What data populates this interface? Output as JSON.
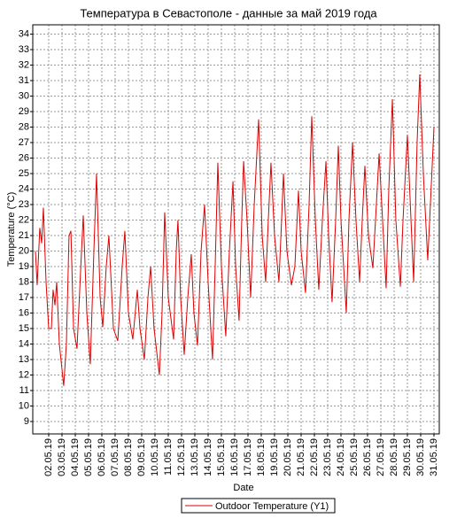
{
  "chart_data": {
    "type": "line",
    "title": "Температура в Севастополе - данные за май 2019 года",
    "x_label": "Date",
    "y_label": "Temperature (°C)",
    "x": [
      1.0,
      1.13,
      1.33,
      1.47,
      1.6,
      1.8,
      2,
      2.2,
      2.33,
      2.47,
      2.6,
      2.8,
      3.13,
      3.33,
      3.53,
      3.67,
      3.87,
      4.13,
      4.47,
      4.6,
      4.87,
      5.13,
      5.4,
      5.6,
      5.87,
      6.07,
      6.33,
      6.53,
      6.87,
      7.2,
      7.53,
      7.73,
      8,
      8.33,
      8.67,
      8.87,
      9.2,
      9.47,
      9.67,
      9.93,
      10.33,
      10.53,
      10.73,
      11,
      11.4,
      11.6,
      11.73,
      11.93,
      12.2,
      12.47,
      12.73,
      12.93,
      13.2,
      13.47,
      13.73,
      14,
      14.33,
      14.53,
      14.73,
      15,
      15.33,
      15.6,
      15.87,
      16.07,
      16.33,
      16.53,
      16.67,
      16.93,
      17.2,
      17.47,
      17.8,
      18.07,
      18.33,
      18.53,
      18.73,
      19,
      19.33,
      19.53,
      19.67,
      19.93,
      20.27,
      20.53,
      20.8,
      21,
      21.33,
      21.6,
      21.8,
      22.07,
      22.33,
      22.6,
      22.87,
      23.07,
      23.33,
      23.6,
      23.8,
      24,
      24.4,
      24.6,
      24.87,
      25.13,
      25.4,
      25.6,
      25.8,
      26.07,
      26.4,
      26.6,
      26.87,
      27.13,
      27.4,
      27.6,
      27.87,
      28.13,
      28.47,
      28.67,
      29,
      29.27,
      29.47,
      29.73,
      29.93,
      30.2,
      30.53,
      30.73,
      31
    ],
    "series": [
      {
        "name": "Outdoor Temperature (Y1)",
        "color": "#dd0000",
        "values": [
          20,
          17.8,
          21.5,
          20.5,
          22.8,
          18,
          15,
          15,
          17.5,
          16.5,
          18,
          14,
          11.3,
          14,
          21,
          21.3,
          15,
          13.7,
          20,
          22.3,
          16,
          12.7,
          20,
          25,
          17,
          15.1,
          19,
          21,
          15,
          14.2,
          19,
          21.3,
          16,
          14.3,
          17.5,
          15,
          13,
          17,
          19,
          15,
          12,
          16,
          22.5,
          17,
          14.3,
          20,
          22,
          17,
          13.3,
          17,
          19.8,
          16,
          13.9,
          20,
          23,
          18,
          13,
          19,
          25.7,
          19,
          14.5,
          20,
          24.5,
          19,
          15.5,
          22,
          25.8,
          22,
          17,
          23,
          28.5,
          21,
          18,
          22,
          25.7,
          21,
          18,
          22,
          25,
          20,
          17.8,
          19,
          23.9,
          20,
          17.3,
          23,
          28.7,
          22,
          17.5,
          22,
          25.8,
          21,
          16.7,
          22,
          26.8,
          22,
          16,
          22,
          27,
          22,
          18,
          22,
          25.5,
          21,
          18.9,
          22,
          26.3,
          22,
          17.6,
          24,
          29.8,
          22,
          17.7,
          22,
          27.5,
          22,
          18,
          27,
          31.4,
          25,
          19.4,
          23,
          28
        ]
      }
    ],
    "xlim": [
      0.8,
      31.4
    ],
    "xticks": [
      {
        "value": 2,
        "label": "02.05.19"
      },
      {
        "value": 3,
        "label": "03.05.19"
      },
      {
        "value": 4,
        "label": "04.05.19"
      },
      {
        "value": 5,
        "label": "05.05.19"
      },
      {
        "value": 6,
        "label": "06.05.19"
      },
      {
        "value": 7,
        "label": "07.05.19"
      },
      {
        "value": 8,
        "label": "08.05.19"
      },
      {
        "value": 9,
        "label": "09.05.19"
      },
      {
        "value": 10,
        "label": "10.05.19"
      },
      {
        "value": 11,
        "label": "11.05.19"
      },
      {
        "value": 12,
        "label": "12.05.19"
      },
      {
        "value": 13,
        "label": "13.05.19"
      },
      {
        "value": 14,
        "label": "14.05.19"
      },
      {
        "value": 15,
        "label": "15.05.19"
      },
      {
        "value": 16,
        "label": "16.05.19"
      },
      {
        "value": 17,
        "label": "17.05.19"
      },
      {
        "value": 18,
        "label": "18.05.19"
      },
      {
        "value": 19,
        "label": "19.05.19"
      },
      {
        "value": 20,
        "label": "20.05.19"
      },
      {
        "value": 21,
        "label": "21.05.19"
      },
      {
        "value": 22,
        "label": "22.05.19"
      },
      {
        "value": 23,
        "label": "23.05.19"
      },
      {
        "value": 24,
        "label": "24.05.19"
      },
      {
        "value": 25,
        "label": "25.05.19"
      },
      {
        "value": 26,
        "label": "26.05.19"
      },
      {
        "value": 27,
        "label": "27.05.19"
      },
      {
        "value": 28,
        "label": "28.05.19"
      },
      {
        "value": 29,
        "label": "29.05.19"
      },
      {
        "value": 30,
        "label": "30.05.19"
      },
      {
        "value": 31,
        "label": "31.05.19"
      }
    ],
    "ylim": [
      8.2,
      34.6
    ],
    "yticks": [
      9,
      10,
      11,
      12,
      13,
      14,
      15,
      16,
      17,
      18,
      19,
      20,
      21,
      22,
      23,
      24,
      25,
      26,
      27,
      28,
      29,
      30,
      31,
      32,
      33,
      34
    ],
    "grid": true,
    "legend": "bottom"
  }
}
